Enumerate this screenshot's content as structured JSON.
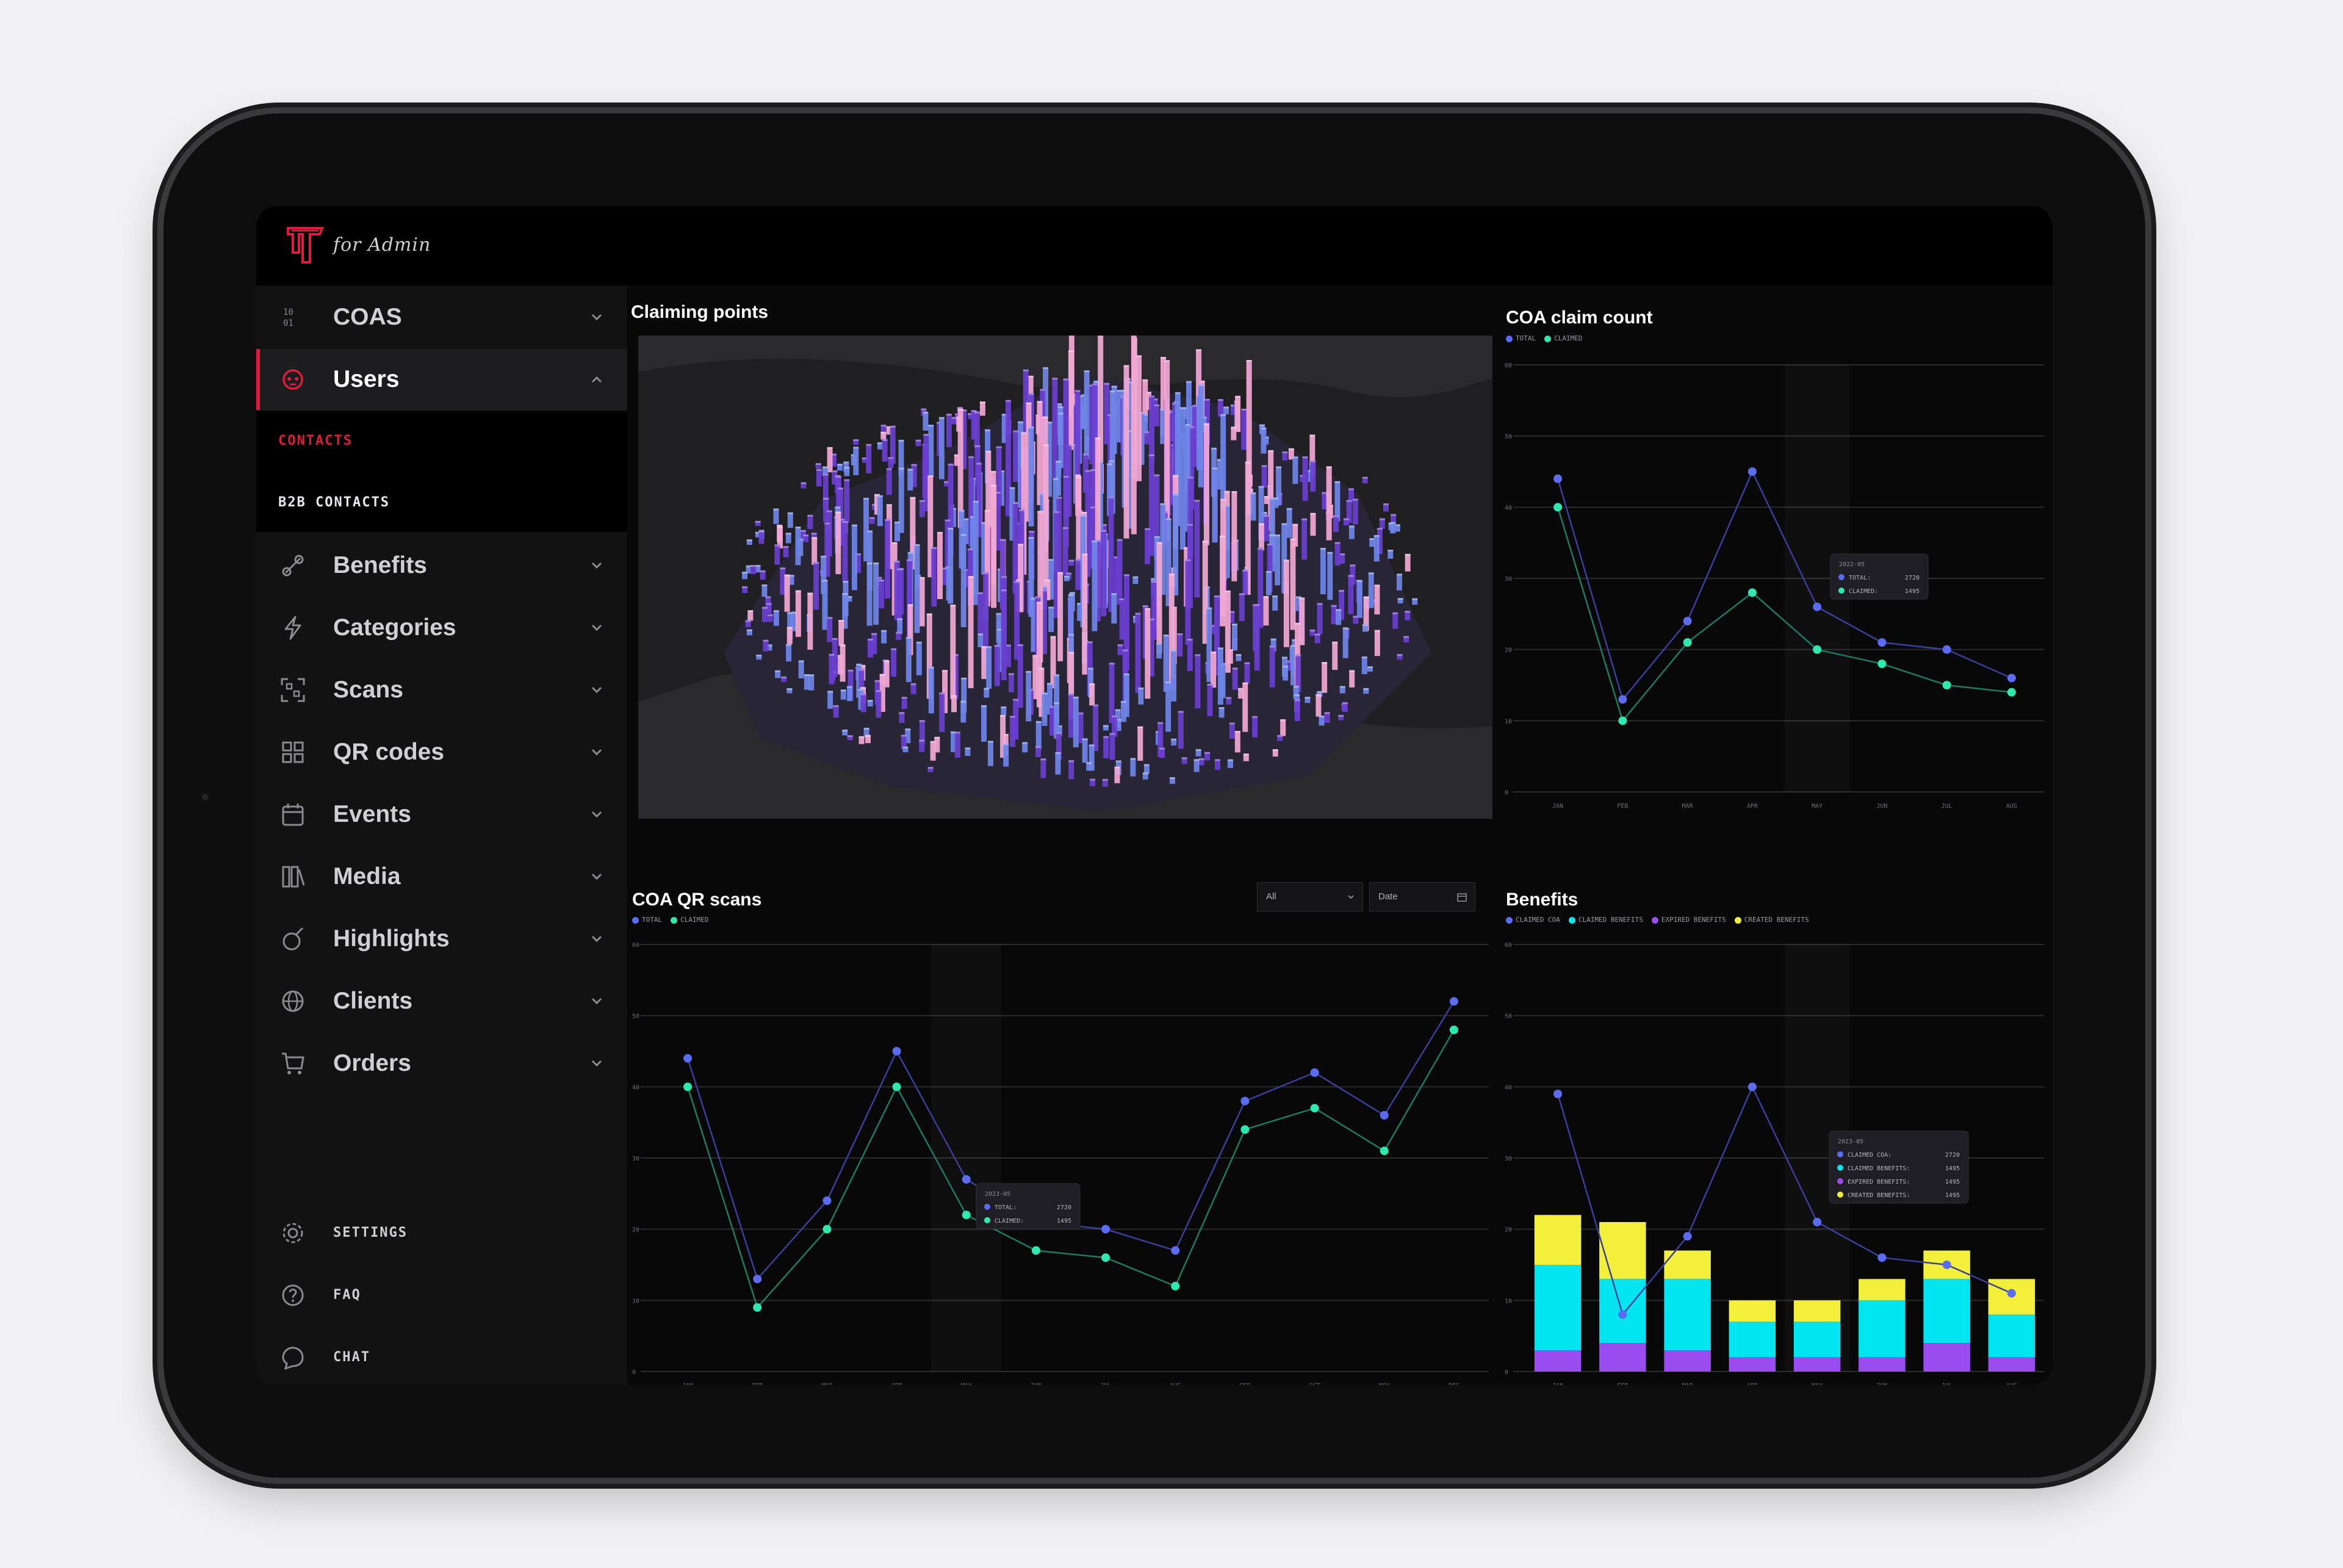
{
  "brand": {
    "for_text": "for Admin",
    "accent": "#e01c3c"
  },
  "sidebar": {
    "items": [
      {
        "label": "COAS",
        "icon": "binary-icon",
        "expanded": false
      },
      {
        "label": "Users",
        "icon": "skull-icon",
        "expanded": true
      },
      {
        "label": "Benefits",
        "icon": "link-icon",
        "expanded": false
      },
      {
        "label": "Categories",
        "icon": "lightning-icon",
        "expanded": false
      },
      {
        "label": "Scans",
        "icon": "scan-icon",
        "expanded": false
      },
      {
        "label": "QR codes",
        "icon": "qr-icon",
        "expanded": false
      },
      {
        "label": "Events",
        "icon": "calendar-icon",
        "expanded": false
      },
      {
        "label": "Media",
        "icon": "media-icon",
        "expanded": false
      },
      {
        "label": "Highlights",
        "icon": "highlight-icon",
        "expanded": false
      },
      {
        "label": "Clients",
        "icon": "globe-icon",
        "expanded": false
      },
      {
        "label": "Orders",
        "icon": "cart-icon",
        "expanded": false
      }
    ],
    "subitems": [
      {
        "label": "CONTACTS",
        "active": true
      },
      {
        "label": "B2B CONTACTS",
        "active": false
      }
    ],
    "bottom": [
      {
        "label": "SETTINGS",
        "icon": "gear-icon"
      },
      {
        "label": "FAQ",
        "icon": "question-icon"
      },
      {
        "label": "CHAT",
        "icon": "chat-icon"
      }
    ]
  },
  "panels": {
    "claiming_points": {
      "title": "Claiming points"
    },
    "coa_claim_count": {
      "title": "COA claim count",
      "legend": [
        "TOTAL",
        "CLAIMED"
      ]
    },
    "coa_qr_scans": {
      "title": "COA QR scans",
      "legend": [
        "TOTAL",
        "CLAIMED"
      ],
      "filter_value": "All",
      "date_placeholder": "Date"
    },
    "benefits": {
      "title": "Benefits",
      "legend": [
        "CLAIMED COA",
        "CLAIMED BENEFITS",
        "EXPIRED BENEFITS",
        "CREATED BENEFITS"
      ]
    }
  },
  "colors": {
    "total": "#5b6cf0",
    "claimed": "#2ee8b0",
    "claimed_benefits": "#00e5f0",
    "expired_benefits": "#9a4cf0",
    "created_benefits": "#f2f03a",
    "map_bar_blue": "#6f86e8",
    "map_bar_purple": "#6a3fd0",
    "map_bar_pink": "#f2a8d4"
  },
  "chart_data": [
    {
      "type": "line",
      "title": "COA claim count",
      "x": [
        "JAN",
        "FEB",
        "MAR",
        "APR",
        "MAY",
        "JUN",
        "JUL",
        "AUG"
      ],
      "yticks": [
        "0",
        "10",
        "20",
        "30",
        "40",
        "50",
        "60"
      ],
      "ylim": [
        0,
        60
      ],
      "series": [
        {
          "name": "TOTAL",
          "values": [
            44,
            13,
            24,
            45,
            26,
            21,
            20,
            16
          ]
        },
        {
          "name": "CLAIMED",
          "values": [
            40,
            10,
            21,
            28,
            20,
            18,
            15,
            14
          ]
        }
      ],
      "tooltip": {
        "period": "2022-05",
        "rows": [
          {
            "label": "TOTAL:",
            "value": "2720"
          },
          {
            "label": "CLAIMED:",
            "value": "1495"
          }
        ]
      }
    },
    {
      "type": "line",
      "title": "COA QR scans",
      "x": [
        "JAN",
        "FEB",
        "MAR",
        "APR",
        "MAY",
        "JUN",
        "JUL",
        "AUG",
        "SEP",
        "OCT",
        "NOV",
        "DEC"
      ],
      "yticks": [
        "0",
        "10",
        "20",
        "30",
        "40",
        "50",
        "60"
      ],
      "ylim": [
        0,
        60
      ],
      "series": [
        {
          "name": "TOTAL",
          "values": [
            44,
            13,
            24,
            45,
            27,
            21,
            20,
            17,
            38,
            42,
            36,
            52
          ]
        },
        {
          "name": "CLAIMED",
          "values": [
            40,
            9,
            20,
            40,
            22,
            17,
            16,
            12,
            34,
            37,
            31,
            48
          ]
        }
      ],
      "tooltip": {
        "period": "2023-05",
        "rows": [
          {
            "label": "TOTAL:",
            "value": "2720"
          },
          {
            "label": "CLAIMED:",
            "value": "1495"
          }
        ]
      }
    },
    {
      "type": "bar",
      "title": "Benefits",
      "x": [
        "JAN",
        "FEB",
        "MAR",
        "APR",
        "MAY",
        "JUN",
        "JUL",
        "AUG"
      ],
      "yticks": [
        "0",
        "10",
        "20",
        "30",
        "40",
        "50",
        "60"
      ],
      "ylim": [
        0,
        60
      ],
      "series": [
        {
          "name": "EXPIRED BENEFITS",
          "values": [
            3,
            4,
            3,
            2,
            2,
            2,
            4,
            2
          ]
        },
        {
          "name": "CLAIMED BENEFITS",
          "values": [
            12,
            9,
            10,
            5,
            5,
            8,
            9,
            6
          ]
        },
        {
          "name": "CREATED BENEFITS",
          "values": [
            7,
            8,
            4,
            3,
            3,
            3,
            4,
            5
          ]
        }
      ],
      "line": {
        "name": "CLAIMED COA",
        "values": [
          39,
          8,
          19,
          40,
          21,
          16,
          15,
          11
        ]
      },
      "tooltip": {
        "period": "2023-05",
        "rows": [
          {
            "label": "CLAIMED COA:",
            "value": "2720"
          },
          {
            "label": "CLAIMED BENEFITS:",
            "value": "1495"
          },
          {
            "label": "EXPIRED BENEFITS:",
            "value": "1495"
          },
          {
            "label": "CREATED BENEFITS:",
            "value": "1495"
          }
        ]
      }
    }
  ]
}
